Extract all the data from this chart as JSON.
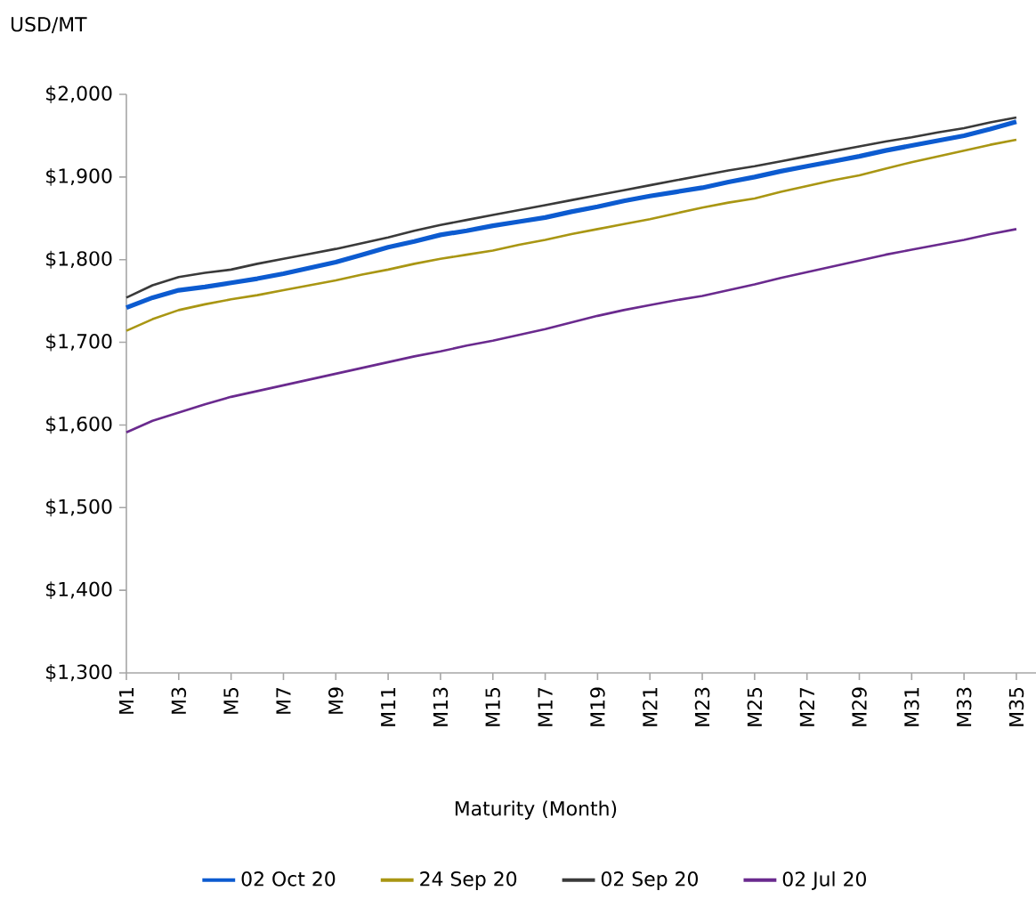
{
  "chart_data": {
    "type": "line",
    "ylabel": "USD/MT",
    "xlabel": "Maturity (Month)",
    "categories": [
      "M1",
      null,
      "M3",
      null,
      "M5",
      null,
      "M7",
      null,
      "M9",
      null,
      "M11",
      null,
      "M13",
      null,
      "M15",
      null,
      "M17",
      null,
      "M19",
      null,
      "M21",
      null,
      "M23",
      null,
      "M25",
      null,
      "M27",
      null,
      "M29",
      null,
      "M31",
      null,
      "M33",
      null,
      "M35"
    ],
    "series": [
      {
        "name": "02 Oct 20",
        "color": "#0c5bd0",
        "values": [
          1742,
          1754,
          1763,
          1767,
          1772,
          1777,
          1783,
          1790,
          1797,
          1806,
          1815,
          1822,
          1830,
          1835,
          1841,
          1846,
          1851,
          1858,
          1864,
          1871,
          1877,
          1882,
          1887,
          1894,
          1900,
          1907,
          1913,
          1919,
          1925,
          1932,
          1938,
          1944,
          1950,
          1958,
          1967
        ]
      },
      {
        "name": "24 Sep 20",
        "color": "#a99613",
        "values": [
          1714,
          1728,
          1739,
          1746,
          1752,
          1757,
          1763,
          1769,
          1775,
          1782,
          1788,
          1795,
          1801,
          1806,
          1811,
          1818,
          1824,
          1831,
          1837,
          1843,
          1849,
          1856,
          1863,
          1869,
          1874,
          1882,
          1889,
          1896,
          1902,
          1910,
          1918,
          1925,
          1932,
          1939,
          1945
        ]
      },
      {
        "name": "02 Sep 20",
        "color": "#3a3a3a",
        "values": [
          1754,
          1769,
          1779,
          1784,
          1788,
          1795,
          1801,
          1807,
          1813,
          1820,
          1827,
          1835,
          1842,
          1848,
          1854,
          1860,
          1866,
          1872,
          1878,
          1884,
          1890,
          1896,
          1902,
          1908,
          1913,
          1919,
          1925,
          1931,
          1937,
          1943,
          1948,
          1954,
          1959,
          1966,
          1972
        ]
      },
      {
        "name": "02 Jul 20",
        "color": "#6a2a8e",
        "values": [
          1591,
          1605,
          1615,
          1625,
          1634,
          1641,
          1648,
          1655,
          1662,
          1669,
          1676,
          1683,
          1689,
          1696,
          1702,
          1709,
          1716,
          1724,
          1732,
          1739,
          1745,
          1751,
          1756,
          1763,
          1770,
          1778,
          1785,
          1792,
          1799,
          1806,
          1812,
          1818,
          1824,
          1831,
          1837
        ]
      }
    ],
    "ylim": [
      1300,
      2000
    ],
    "yticks": [
      {
        "value": 1300,
        "label": "$1,300"
      },
      {
        "value": 1400,
        "label": "$1,400"
      },
      {
        "value": 1500,
        "label": "$1,500"
      },
      {
        "value": 1600,
        "label": "$1,600"
      },
      {
        "value": 1700,
        "label": "$1,700"
      },
      {
        "value": 1800,
        "label": "$1,800"
      },
      {
        "value": 1900,
        "label": "$1,900"
      },
      {
        "value": 2000,
        "label": "$2,000"
      }
    ],
    "legend": "bottom",
    "grid": false,
    "marker": "none",
    "line_style": "solid"
  }
}
